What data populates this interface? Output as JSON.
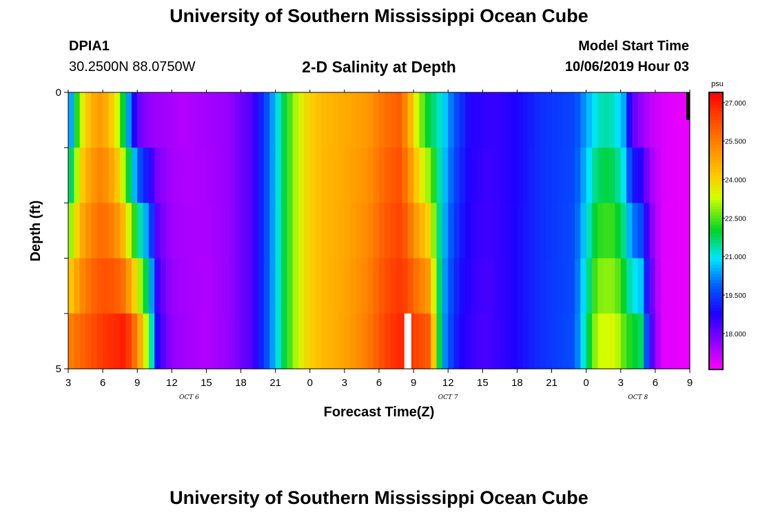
{
  "header": {
    "title": "University of Southern Mississippi Ocean Cube",
    "station": "DPIA1",
    "coordinates": "30.2500N 88.0750W",
    "subtitle": "2-D Salinity at Depth",
    "model_start_label": "Model Start Time",
    "model_start_value": "10/06/2019 Hour 03"
  },
  "footer": {
    "title": "University of Southern Mississippi Ocean Cube"
  },
  "chart_data": {
    "type": "heatmap",
    "title": "2-D Salinity at Depth",
    "xlabel": "Forecast Time(Z)",
    "ylabel": "Depth (ft)",
    "x_hours_range": [
      0,
      54
    ],
    "x_tick_labels": [
      "3",
      "6",
      "9",
      "12",
      "15",
      "18",
      "21",
      "0",
      "3",
      "6",
      "9",
      "12",
      "15",
      "18",
      "21",
      "0",
      "3",
      "6",
      "9"
    ],
    "date_labels": [
      {
        "label": "OCT 6",
        "hour_offset": 10.5
      },
      {
        "label": "OCT 7",
        "hour_offset": 33
      },
      {
        "label": "OCT 8",
        "hour_offset": 49.5
      }
    ],
    "y_tick_labels": [
      "0",
      "5"
    ],
    "ylim": [
      0,
      5
    ],
    "depth_layers": 5,
    "colorbar": {
      "unit": "psu",
      "min": 16.6,
      "max": 27.4,
      "tick_labels": [
        "27.000",
        "25.500",
        "24.000",
        "22.500",
        "21.000",
        "19.500",
        "18.000"
      ],
      "tick_values": [
        27.0,
        25.5,
        24.0,
        22.5,
        21.0,
        19.5,
        18.0
      ]
    },
    "surface_keypoints": [
      [
        0,
        19.5
      ],
      [
        0.6,
        21.8
      ],
      [
        1.2,
        23.5
      ],
      [
        1.8,
        24.3
      ],
      [
        2.6,
        25.0
      ],
      [
        3.4,
        24.6
      ],
      [
        4.2,
        23.5
      ],
      [
        4.8,
        21.8
      ],
      [
        5.4,
        19.8
      ],
      [
        6.0,
        18.1
      ],
      [
        7.0,
        17.6
      ],
      [
        10,
        17.3
      ],
      [
        14,
        17.6
      ],
      [
        16,
        18.3
      ],
      [
        17.5,
        20.0
      ],
      [
        18.5,
        21.5
      ],
      [
        19.5,
        22.8
      ],
      [
        20.5,
        23.8
      ],
      [
        22,
        24.4
      ],
      [
        24,
        24.7
      ],
      [
        26,
        25.0
      ],
      [
        27.5,
        25.7
      ],
      [
        28.8,
        26.0
      ],
      [
        29.5,
        25.0
      ],
      [
        30.3,
        23.3
      ],
      [
        31.2,
        22.0
      ],
      [
        32.5,
        21.0
      ],
      [
        33.5,
        19.8
      ],
      [
        35,
        18.7
      ],
      [
        37,
        18.5
      ],
      [
        39,
        18.8
      ],
      [
        41,
        19.3
      ],
      [
        44,
        19.6
      ],
      [
        45,
        20.4
      ],
      [
        46,
        21.2
      ],
      [
        47,
        21.4
      ],
      [
        48.2,
        20.6
      ],
      [
        49,
        18.1
      ],
      [
        50.5,
        17.2
      ],
      [
        52,
        16.9
      ],
      [
        54,
        16.8
      ]
    ],
    "bottom_keypoints": [
      [
        0,
        25.4
      ],
      [
        1,
        25.8
      ],
      [
        2,
        26.2
      ],
      [
        3,
        26.6
      ],
      [
        4,
        26.8
      ],
      [
        5,
        27.0
      ],
      [
        6,
        25.3
      ],
      [
        6.6,
        23.8
      ],
      [
        7.2,
        21.5
      ],
      [
        7.8,
        18.6
      ],
      [
        9,
        17.6
      ],
      [
        12,
        17.3
      ],
      [
        14,
        17.6
      ],
      [
        16,
        18.3
      ],
      [
        17.5,
        20.0
      ],
      [
        18.5,
        21.5
      ],
      [
        19.5,
        22.8
      ],
      [
        20.5,
        23.8
      ],
      [
        22,
        24.4
      ],
      [
        24,
        24.8
      ],
      [
        26,
        25.5
      ],
      [
        27.5,
        26.4
      ],
      [
        29,
        26.9
      ],
      [
        30,
        26.5
      ],
      [
        31.4,
        26.0
      ],
      [
        32.1,
        22.3
      ],
      [
        32.8,
        20.0
      ],
      [
        34,
        18.8
      ],
      [
        36,
        18.3
      ],
      [
        38,
        18.6
      ],
      [
        41,
        19.3
      ],
      [
        44,
        19.7
      ],
      [
        45,
        21.5
      ],
      [
        46,
        23.3
      ],
      [
        47.5,
        23.4
      ],
      [
        48.5,
        22.3
      ],
      [
        49.8,
        21.7
      ],
      [
        50.5,
        18.6
      ],
      [
        51.5,
        16.9
      ],
      [
        54,
        16.8
      ]
    ],
    "vertical_profiles": [
      {
        "hour_range": [
          4.5,
          8.4
        ],
        "note": "salinity increases downward from ~18 psu at surface to ~26 psu at bottom"
      },
      {
        "hour_range": [
          29.5,
          32.0
        ],
        "note": "surface ~22 psu, deeper layers 25-27 psu"
      },
      {
        "hour_range": [
          46.0,
          51.5
        ],
        "note": "surface ~18 psu, deeper layers 21-23 psu"
      }
    ],
    "annotations": [
      {
        "type": "missing-value-gap",
        "hour": 29.5,
        "depth_layer": 5
      }
    ]
  }
}
